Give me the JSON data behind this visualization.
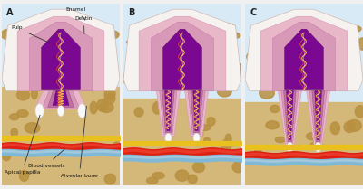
{
  "panel_labels": [
    "A",
    "B",
    "C"
  ],
  "bg_light_blue": "#d8eaf5",
  "bone_tan": "#d4b87a",
  "bone_spot_dark": "#b89040",
  "enamel_white": "#f5f2ef",
  "enamel_edge": "#e8d8d0",
  "dentin_pink": "#e8b8c8",
  "dentin_mid": "#d898b8",
  "dentin_dark": "#c070a0",
  "pulp_purple": "#7a0890",
  "pulp_dark": "#500060",
  "vessel_red1": "#dd2010",
  "vessel_red2": "#ee4030",
  "vessel_blue1": "#80b8d8",
  "vessel_blue2": "#a8ccdd",
  "nerve_yellow": "#e8c020",
  "white_struct": "#f5f5f5",
  "annot_color": "#222222",
  "wavy_yellow": "#f0d040",
  "wavy_red": "#ee5030",
  "wavy_white": "#ffffff"
}
